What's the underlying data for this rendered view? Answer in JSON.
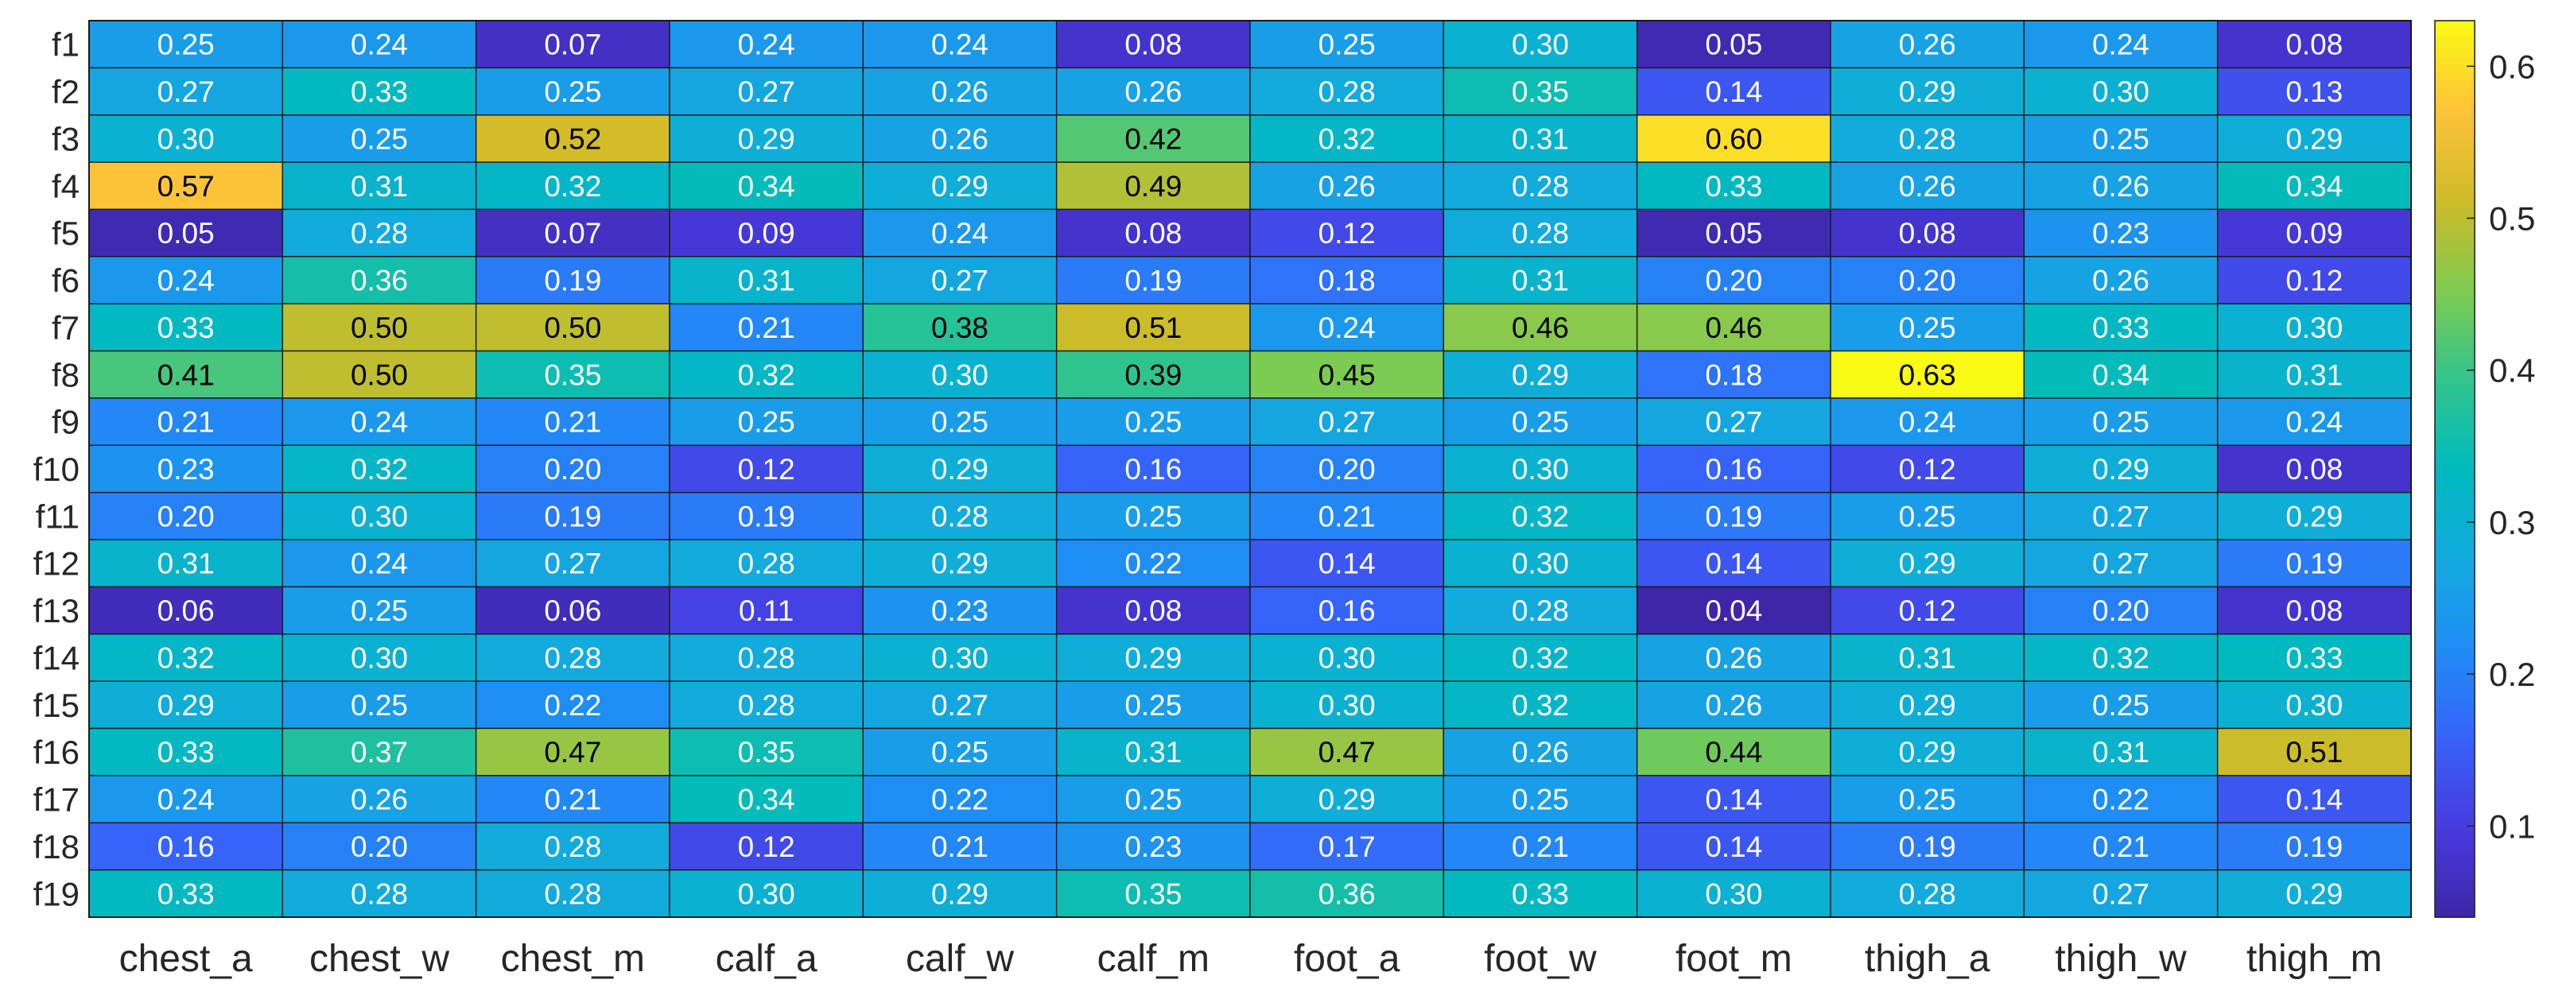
{
  "chart_data": {
    "type": "heatmap",
    "title": "",
    "xlabel": "",
    "ylabel": "",
    "columns": [
      "chest_a",
      "chest_w",
      "chest_m",
      "calf_a",
      "calf_w",
      "calf_m",
      "foot_a",
      "foot_w",
      "foot_m",
      "thigh_a",
      "thigh_w",
      "thigh_m"
    ],
    "rows": [
      "f1",
      "f2",
      "f3",
      "f4",
      "f5",
      "f6",
      "f7",
      "f8",
      "f9",
      "f10",
      "f11",
      "f12",
      "f13",
      "f14",
      "f15",
      "f16",
      "f17",
      "f18",
      "f19"
    ],
    "values": [
      [
        "0.25",
        "0.24",
        "0.07",
        "0.24",
        "0.24",
        "0.08",
        "0.25",
        "0.30",
        "0.05",
        "0.26",
        "0.24",
        "0.08"
      ],
      [
        "0.27",
        "0.33",
        "0.25",
        "0.27",
        "0.26",
        "0.26",
        "0.28",
        "0.35",
        "0.14",
        "0.29",
        "0.30",
        "0.13"
      ],
      [
        "0.30",
        "0.25",
        "0.52",
        "0.29",
        "0.26",
        "0.42",
        "0.32",
        "0.31",
        "0.60",
        "0.28",
        "0.25",
        "0.29"
      ],
      [
        "0.57",
        "0.31",
        "0.32",
        "0.34",
        "0.29",
        "0.49",
        "0.26",
        "0.28",
        "0.33",
        "0.26",
        "0.26",
        "0.34"
      ],
      [
        "0.05",
        "0.28",
        "0.07",
        "0.09",
        "0.24",
        "0.08",
        "0.12",
        "0.28",
        "0.05",
        "0.08",
        "0.23",
        "0.09"
      ],
      [
        "0.24",
        "0.36",
        "0.19",
        "0.31",
        "0.27",
        "0.19",
        "0.18",
        "0.31",
        "0.20",
        "0.20",
        "0.26",
        "0.12"
      ],
      [
        "0.33",
        "0.50",
        "0.50",
        "0.21",
        "0.38",
        "0.51",
        "0.24",
        "0.46",
        "0.46",
        "0.25",
        "0.33",
        "0.30"
      ],
      [
        "0.41",
        "0.50",
        "0.35",
        "0.32",
        "0.30",
        "0.39",
        "0.45",
        "0.29",
        "0.18",
        "0.63",
        "0.34",
        "0.31"
      ],
      [
        "0.21",
        "0.24",
        "0.21",
        "0.25",
        "0.25",
        "0.25",
        "0.27",
        "0.25",
        "0.27",
        "0.24",
        "0.25",
        "0.24"
      ],
      [
        "0.23",
        "0.32",
        "0.20",
        "0.12",
        "0.29",
        "0.16",
        "0.20",
        "0.30",
        "0.16",
        "0.12",
        "0.29",
        "0.08"
      ],
      [
        "0.20",
        "0.30",
        "0.19",
        "0.19",
        "0.28",
        "0.25",
        "0.21",
        "0.32",
        "0.19",
        "0.25",
        "0.27",
        "0.29"
      ],
      [
        "0.31",
        "0.24",
        "0.27",
        "0.28",
        "0.29",
        "0.22",
        "0.14",
        "0.30",
        "0.14",
        "0.29",
        "0.27",
        "0.19"
      ],
      [
        "0.06",
        "0.25",
        "0.06",
        "0.11",
        "0.23",
        "0.08",
        "0.16",
        "0.28",
        "0.04",
        "0.12",
        "0.20",
        "0.08"
      ],
      [
        "0.32",
        "0.30",
        "0.28",
        "0.28",
        "0.30",
        "0.29",
        "0.30",
        "0.32",
        "0.26",
        "0.31",
        "0.32",
        "0.33"
      ],
      [
        "0.29",
        "0.25",
        "0.22",
        "0.28",
        "0.27",
        "0.25",
        "0.30",
        "0.32",
        "0.26",
        "0.29",
        "0.25",
        "0.30"
      ],
      [
        "0.33",
        "0.37",
        "0.47",
        "0.35",
        "0.25",
        "0.31",
        "0.47",
        "0.26",
        "0.44",
        "0.29",
        "0.31",
        "0.51"
      ],
      [
        "0.24",
        "0.26",
        "0.21",
        "0.34",
        "0.22",
        "0.25",
        "0.29",
        "0.25",
        "0.14",
        "0.25",
        "0.22",
        "0.14"
      ],
      [
        "0.16",
        "0.20",
        "0.28",
        "0.12",
        "0.21",
        "0.23",
        "0.17",
        "0.21",
        "0.14",
        "0.19",
        "0.21",
        "0.19"
      ],
      [
        "0.33",
        "0.28",
        "0.28",
        "0.30",
        "0.29",
        "0.35",
        "0.36",
        "0.33",
        "0.30",
        "0.28",
        "0.27",
        "0.29"
      ]
    ],
    "colorbar": {
      "colormap": "parula",
      "range": [
        0.04,
        0.63
      ],
      "ticks": [
        "0.1",
        "0.2",
        "0.3",
        "0.4",
        "0.5",
        "0.6"
      ]
    },
    "grid": true,
    "legend": "colorbar-right"
  }
}
